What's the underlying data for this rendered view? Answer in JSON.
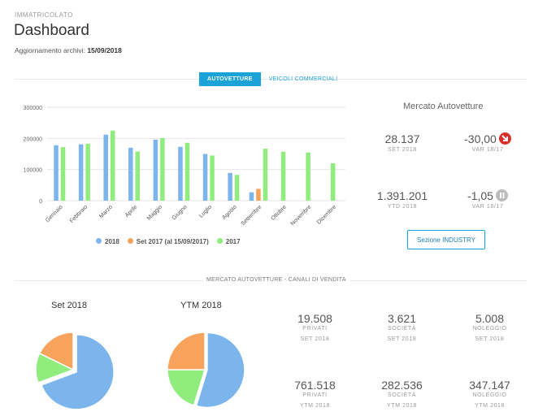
{
  "header": {
    "overline": "IMMATRICOLATO",
    "title": "Dashboard",
    "updated_label": "Aggiornamento archivi:",
    "updated_value": "15/09/2018"
  },
  "tabs": [
    {
      "label": "AUTOVETTURE",
      "active": true
    },
    {
      "label": "VEICOLI COMMERCIALI",
      "active": false
    }
  ],
  "market": {
    "title": "Mercato Autovetture",
    "stats": [
      {
        "value": "28.137",
        "label": "SET 2018"
      },
      {
        "value": "-30,00",
        "label": "VAR 18/17",
        "indicator": "down-arrow-icon",
        "color": "#d9302c"
      },
      {
        "value": "1.391.201",
        "label": "YTD 2018"
      },
      {
        "value": "-1,05",
        "label": "VAR 18/17",
        "indicator": "pause-icon",
        "color": "#bbbbbb"
      }
    ],
    "button_label": "Sezione INDUSTRY"
  },
  "section2": {
    "title": "MERCATO AUTOVETTURE - CANALI DI VENDITA"
  },
  "pies": [
    {
      "title": "Set 2018"
    },
    {
      "title": "YTM 2018"
    }
  ],
  "kpis": {
    "row1": [
      {
        "value": "19.508",
        "label": "PRIVATI",
        "sub": "SET 2018"
      },
      {
        "value": "3.621",
        "label": "SOCIETÀ",
        "sub": "SET 2018"
      },
      {
        "value": "5.008",
        "label": "NOLEGGIO",
        "sub": "SET 2018"
      }
    ],
    "row2": [
      {
        "value": "761.518",
        "label": "PRIVATI",
        "sub": "YTM 2018"
      },
      {
        "value": "282.536",
        "label": "SOCIETÀ",
        "sub": "YTM 2018"
      },
      {
        "value": "347.147",
        "label": "NOLEGGIO",
        "sub": "YTM 2018"
      }
    ]
  },
  "chart_data": [
    {
      "type": "bar",
      "categories": [
        "Gennaio",
        "Febbraio",
        "Marzo",
        "Aprile",
        "Maggio",
        "Giugno",
        "Luglio",
        "Agosto",
        "Settembre",
        "Ottobre",
        "Novembre",
        "Dicembre"
      ],
      "ylim": [
        0,
        300000
      ],
      "yticks": [
        0,
        100000,
        200000,
        300000
      ],
      "ytick_labels": [
        "0",
        "100000",
        "200000",
        "300000"
      ],
      "grid": true,
      "legend_position": "bottom",
      "series": [
        {
          "name": "2018",
          "color": "#7cb5ec",
          "values": [
            178000,
            181000,
            212000,
            170000,
            196000,
            173000,
            150000,
            89000,
            27000,
            null,
            null,
            null
          ]
        },
        {
          "name": "Set 2017 (al 15/09/2017)",
          "color": "#f7a35c",
          "values": [
            null,
            null,
            null,
            null,
            null,
            null,
            null,
            null,
            38000,
            null,
            null,
            null
          ]
        },
        {
          "name": "2017",
          "color": "#90ed7d",
          "values": [
            172000,
            183000,
            225000,
            158000,
            201000,
            186000,
            145000,
            83000,
            167000,
            157000,
            155000,
            120000
          ]
        }
      ]
    },
    {
      "type": "pie",
      "title": "Set 2018",
      "series": [
        {
          "name": "PRIVATI",
          "value": 19508,
          "color": "#7cb5ec"
        },
        {
          "name": "SOCIETÀ",
          "value": 3621,
          "color": "#90ed7d"
        },
        {
          "name": "NOLEGGIO",
          "value": 5008,
          "color": "#f7a35c"
        }
      ]
    },
    {
      "type": "pie",
      "title": "YTM 2018",
      "series": [
        {
          "name": "PRIVATI",
          "value": 761518,
          "color": "#7cb5ec"
        },
        {
          "name": "SOCIETÀ",
          "value": 282536,
          "color": "#90ed7d"
        },
        {
          "name": "NOLEGGIO",
          "value": 347147,
          "color": "#f7a35c"
        }
      ]
    }
  ]
}
